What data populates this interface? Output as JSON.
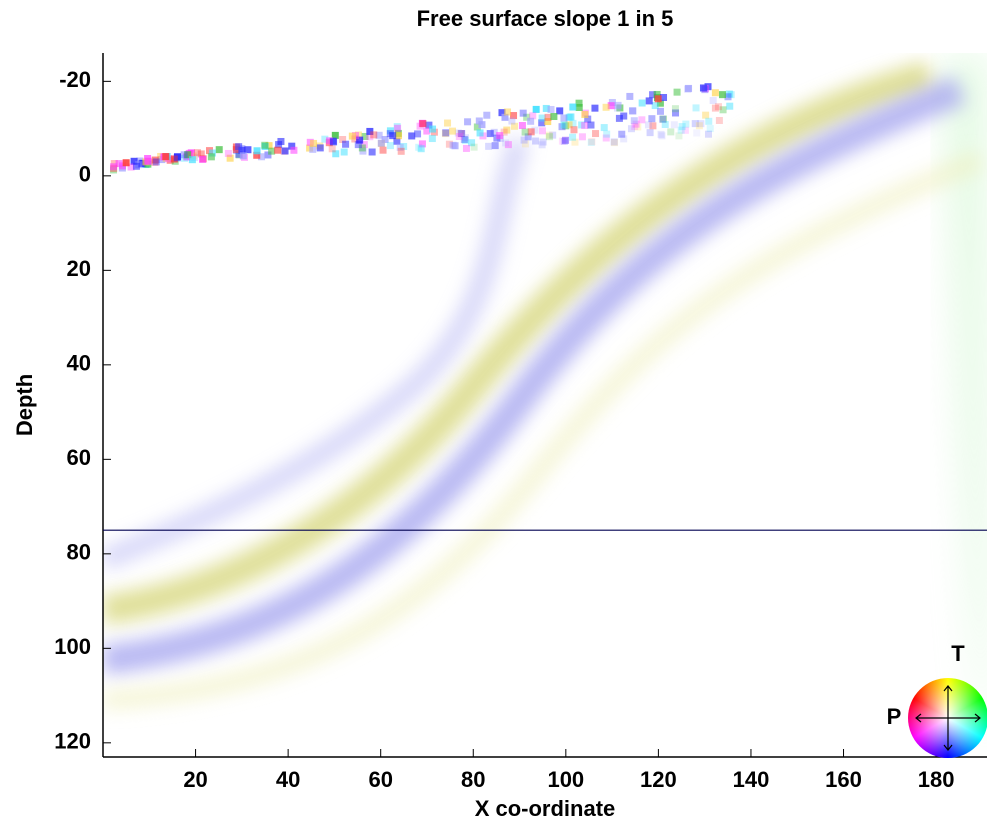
{
  "chart_data": {
    "type": "image",
    "title": "Free surface slope 1 in 5",
    "x_label": "X co-ordinate",
    "y_label": "Depth",
    "xlim": [
      0,
      191
    ],
    "ylim": [
      123,
      -26
    ],
    "y_inverted": true,
    "xticks": [
      20,
      40,
      60,
      80,
      100,
      120,
      140,
      160,
      180
    ],
    "yticks": [
      -20,
      0,
      20,
      40,
      60,
      80,
      100,
      120
    ],
    "hlines": [
      75
    ],
    "hline_color": "#000050",
    "legend_labels": [
      "T",
      "P"
    ]
  }
}
